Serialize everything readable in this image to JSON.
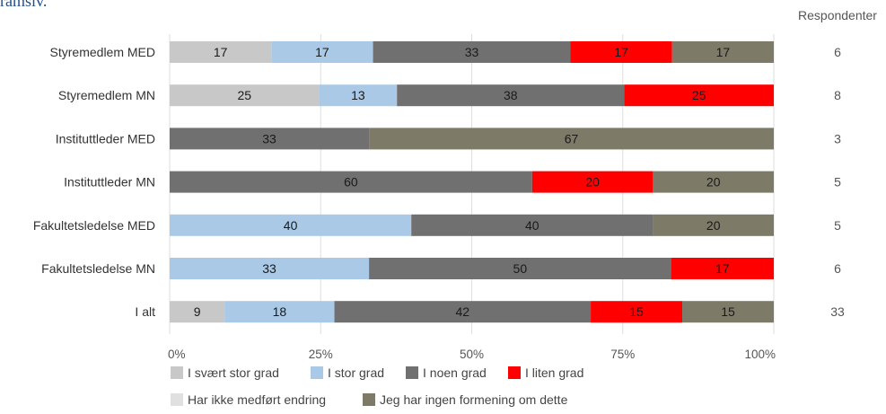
{
  "page": {
    "title_fragment": "ramsiv."
  },
  "chart_data": {
    "type": "bar",
    "orientation": "horizontal",
    "stacked": true,
    "percent": true,
    "categories": [
      "Styremedlem MED",
      "Styremedlem MN",
      "Instituttleder MED",
      "Instituttleder MN",
      "Fakultetsledelse MED",
      "Fakultetsledelse MN",
      "I alt"
    ],
    "series": [
      {
        "name": "I svært stor grad",
        "color": "#c8c8c8",
        "values": [
          17,
          25,
          0,
          0,
          0,
          0,
          9
        ]
      },
      {
        "name": "I stor grad",
        "color": "#a9c9e6",
        "values": [
          17,
          13,
          0,
          0,
          40,
          33,
          18
        ]
      },
      {
        "name": "I noen grad",
        "color": "#707070",
        "values": [
          33,
          38,
          33,
          60,
          40,
          50,
          42
        ]
      },
      {
        "name": "I liten grad",
        "color": "#ff0000",
        "values": [
          17,
          25,
          0,
          20,
          0,
          17,
          15
        ]
      },
      {
        "name": "Har ikke medført endring",
        "color": "#e0e0e0",
        "values": [
          0,
          0,
          0,
          0,
          0,
          0,
          0
        ]
      },
      {
        "name": "Jeg har ingen formening om dette",
        "color": "#7d7a68",
        "values": [
          17,
          0,
          67,
          20,
          20,
          0,
          15
        ]
      }
    ],
    "respondents_header": "Respondenter",
    "respondents": [
      6,
      8,
      3,
      5,
      5,
      6,
      33
    ],
    "xticks": [
      "0%",
      "25%",
      "50%",
      "75%",
      "100%"
    ],
    "xlim": [
      0,
      100
    ],
    "grid": true,
    "legend_position": "bottom"
  }
}
